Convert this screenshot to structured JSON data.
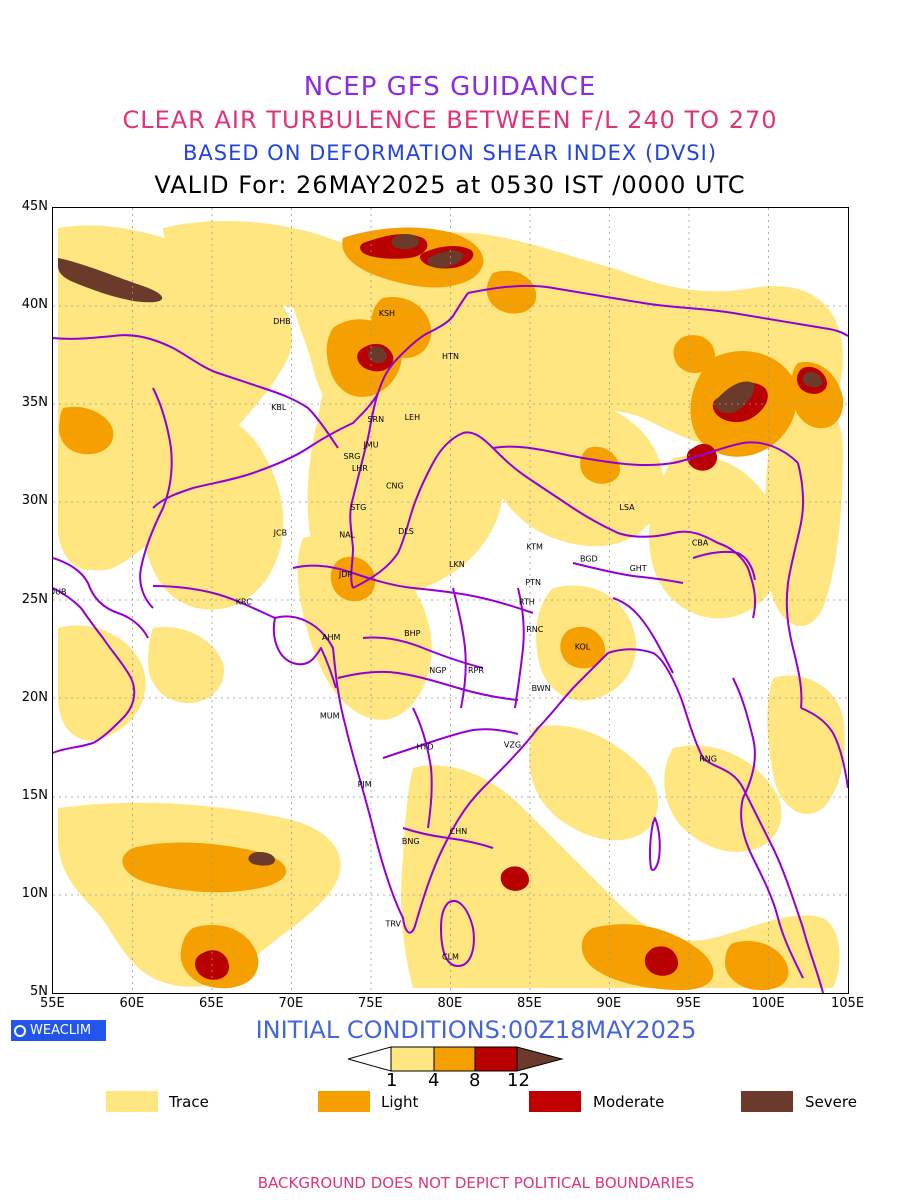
{
  "titles": {
    "line1": "NCEP GFS GUIDANCE",
    "line2": "CLEAR AIR TURBULENCE BETWEEN F/L 240 TO 270",
    "line3": "BASED ON DEFORMATION SHEAR INDEX (DVSI)",
    "line4": "VALID For: 26MAY2025 at 0530 IST /0000 UTC"
  },
  "map": {
    "lon_labels": [
      "55E",
      "60E",
      "65E",
      "70E",
      "75E",
      "80E",
      "85E",
      "90E",
      "95E",
      "100E",
      "105E"
    ],
    "lat_labels": [
      "45N",
      "40N",
      "35N",
      "30N",
      "25N",
      "20N",
      "15N",
      "10N",
      "5N"
    ],
    "lon_range": [
      55,
      105
    ],
    "lat_range": [
      5,
      45
    ],
    "grid": true,
    "cities": [
      {
        "code": "DHB",
        "lon": 69.4,
        "lat": 39.1
      },
      {
        "code": "KSH",
        "lon": 76.0,
        "lat": 39.5
      },
      {
        "code": "HTN",
        "lon": 80.0,
        "lat": 37.3
      },
      {
        "code": "KBL",
        "lon": 69.2,
        "lat": 34.7
      },
      {
        "code": "SRN",
        "lon": 75.3,
        "lat": 34.1
      },
      {
        "code": "LEH",
        "lon": 77.6,
        "lat": 34.2
      },
      {
        "code": "JMU",
        "lon": 75.0,
        "lat": 32.8
      },
      {
        "code": "SRG",
        "lon": 73.8,
        "lat": 32.2
      },
      {
        "code": "LHR",
        "lon": 74.3,
        "lat": 31.6
      },
      {
        "code": "CNG",
        "lon": 76.5,
        "lat": 30.7
      },
      {
        "code": "STG",
        "lon": 74.2,
        "lat": 29.6
      },
      {
        "code": "JCB",
        "lon": 69.3,
        "lat": 28.3
      },
      {
        "code": "NAL",
        "lon": 73.5,
        "lat": 28.2
      },
      {
        "code": "DLS",
        "lon": 77.2,
        "lat": 28.4
      },
      {
        "code": "LSA",
        "lon": 91.1,
        "lat": 29.6
      },
      {
        "code": "KTM",
        "lon": 85.3,
        "lat": 27.6
      },
      {
        "code": "BGD",
        "lon": 88.7,
        "lat": 27.0
      },
      {
        "code": "CBA",
        "lon": 95.7,
        "lat": 27.8
      },
      {
        "code": "GHT",
        "lon": 91.8,
        "lat": 26.5
      },
      {
        "code": "LKN",
        "lon": 80.4,
        "lat": 26.7
      },
      {
        "code": "JDP",
        "lon": 73.4,
        "lat": 26.2
      },
      {
        "code": "PTN",
        "lon": 85.2,
        "lat": 25.8
      },
      {
        "code": "DUB",
        "lon": 55.3,
        "lat": 25.3
      },
      {
        "code": "KRC",
        "lon": 67.0,
        "lat": 24.8
      },
      {
        "code": "RTH",
        "lon": 84.8,
        "lat": 24.8
      },
      {
        "code": "AHM",
        "lon": 72.5,
        "lat": 23.0
      },
      {
        "code": "BHP",
        "lon": 77.6,
        "lat": 23.2
      },
      {
        "code": "RNC",
        "lon": 85.3,
        "lat": 23.4
      },
      {
        "code": "KOL",
        "lon": 88.3,
        "lat": 22.5
      },
      {
        "code": "NGP",
        "lon": 79.2,
        "lat": 21.3
      },
      {
        "code": "RPR",
        "lon": 81.6,
        "lat": 21.3
      },
      {
        "code": "BWN",
        "lon": 85.7,
        "lat": 20.4
      },
      {
        "code": "MUM",
        "lon": 72.4,
        "lat": 19.0
      },
      {
        "code": "HYD",
        "lon": 78.4,
        "lat": 17.4
      },
      {
        "code": "VZG",
        "lon": 83.9,
        "lat": 17.5
      },
      {
        "code": "RNG",
        "lon": 96.2,
        "lat": 16.8
      },
      {
        "code": "PJM",
        "lon": 74.6,
        "lat": 15.5
      },
      {
        "code": "CHN",
        "lon": 80.5,
        "lat": 13.1
      },
      {
        "code": "BNG",
        "lon": 77.5,
        "lat": 12.6
      },
      {
        "code": "TRV",
        "lon": 76.4,
        "lat": 8.4
      },
      {
        "code": "CLM",
        "lon": 80.0,
        "lat": 6.7
      }
    ]
  },
  "logo_text": "WEACLIM",
  "initial_conditions": "INITIAL CONDITIONS:00Z18MAY2025",
  "colorbar": {
    "thresholds": [
      "1",
      "4",
      "8",
      "12"
    ],
    "colors": [
      "#FFE680",
      "#F5A000",
      "#B80000",
      "#6B3A2A"
    ]
  },
  "legend": [
    {
      "label": "Trace",
      "color": "#FFE680"
    },
    {
      "label": "Light",
      "color": "#F5A000"
    },
    {
      "label": "Moderate",
      "color": "#C00000"
    },
    {
      "label": "Severe",
      "color": "#6B3A2A"
    }
  ],
  "footer": "BACKGROUND DOES NOT DEPICT POLITICAL BOUNDARIES",
  "colors": {
    "boundary": "#9400D3",
    "trace": "#FFE680",
    "light": "#F5A000",
    "moderate": "#B80000",
    "severe": "#6B3A2A"
  }
}
